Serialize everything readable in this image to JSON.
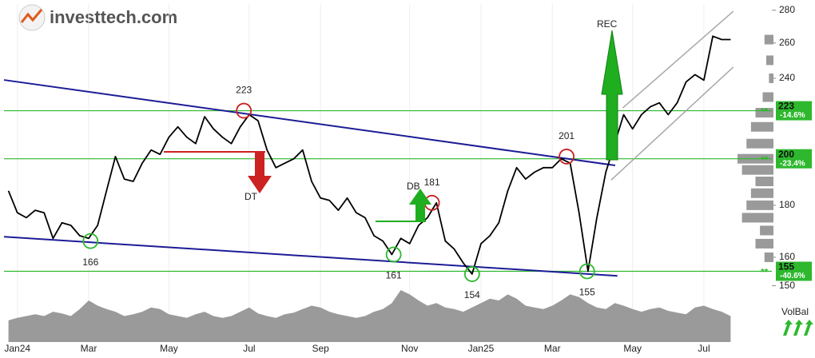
{
  "header": {
    "logo": "investtech.com"
  },
  "chart_data": {
    "type": "line",
    "log_scale": true,
    "color": "#000000",
    "ylim": [
      148,
      284
    ],
    "yticks": [
      150,
      160,
      180,
      240,
      260,
      280
    ],
    "categories": [
      null,
      "Jan24",
      null,
      null,
      null,
      null,
      null,
      null,
      null,
      "Mar",
      null,
      null,
      null,
      null,
      null,
      null,
      null,
      null,
      "May",
      null,
      null,
      null,
      null,
      null,
      null,
      null,
      null,
      "Jul",
      null,
      null,
      null,
      null,
      null,
      null,
      null,
      "Sep",
      null,
      null,
      null,
      null,
      null,
      null,
      null,
      null,
      null,
      "Nov",
      null,
      null,
      null,
      null,
      null,
      null,
      null,
      "Jan25",
      null,
      null,
      null,
      null,
      null,
      null,
      null,
      "Mar",
      null,
      null,
      null,
      null,
      null,
      null,
      null,
      null,
      "May",
      null,
      null,
      null,
      null,
      null,
      null,
      null,
      "Jul",
      null,
      null,
      null
    ],
    "values": [
      186,
      177,
      175,
      178,
      177,
      167,
      173,
      172,
      168,
      167,
      172,
      186,
      201,
      191,
      190,
      198,
      204,
      202,
      210,
      215,
      210,
      207,
      220,
      214,
      210,
      207,
      215,
      221,
      218,
      204,
      196,
      198,
      200,
      204,
      190,
      183,
      182,
      178,
      183,
      177,
      175,
      168,
      166,
      161,
      167,
      165,
      172,
      175,
      181,
      166,
      163,
      158,
      154,
      165,
      168,
      173,
      186,
      196,
      191,
      194,
      196,
      196,
      200,
      198,
      177,
      155,
      175,
      194,
      207,
      221,
      214,
      221,
      225,
      227,
      221,
      227,
      238,
      242,
      239,
      264,
      262,
      262
    ],
    "volume": {
      "label": "VolBal",
      "color": "#9a9a9a",
      "values": [
        25,
        28,
        30,
        32,
        30,
        35,
        33,
        30,
        38,
        48,
        42,
        38,
        35,
        30,
        32,
        35,
        40,
        38,
        32,
        30,
        28,
        32,
        35,
        30,
        28,
        30,
        35,
        40,
        33,
        30,
        28,
        32,
        34,
        38,
        42,
        40,
        35,
        32,
        30,
        28,
        30,
        35,
        38,
        45,
        60,
        55,
        48,
        42,
        45,
        40,
        38,
        35,
        40,
        45,
        50,
        48,
        55,
        50,
        42,
        40,
        38,
        42,
        48,
        55,
        52,
        45,
        40,
        38,
        45,
        42,
        38,
        35,
        38,
        40,
        36,
        34,
        32,
        40,
        42,
        38,
        35,
        30
      ]
    },
    "volume_profile": {
      "color": "#9a9a9a",
      "levels": [
        262,
        250,
        240,
        230,
        222,
        215,
        207,
        200,
        195,
        190,
        185,
        180,
        175,
        170,
        165,
        160
      ],
      "values": [
        10,
        8,
        5,
        12,
        20,
        25,
        30,
        40,
        35,
        20,
        25,
        30,
        35,
        15,
        20,
        10
      ]
    },
    "levels": [
      {
        "value": 223,
        "label": "-14.6%",
        "flag": "**"
      },
      {
        "value": 200,
        "label": "-23.4%",
        "flag": "**"
      },
      {
        "value": 155,
        "label": "-40.6%",
        "flag": "**"
      }
    ],
    "level_color": "#2db82d",
    "trendlines": [
      {
        "color": "#1c1c96",
        "points": [
          [
            -0.5,
            239.1
          ],
          [
            68.05,
            197
          ]
        ]
      },
      {
        "color": "#1c1c96",
        "points": [
          [
            -0.5,
            167.6
          ],
          [
            68.3,
            153.4
          ]
        ]
      },
      {
        "color": "#a8a8a8",
        "points": [
          [
            68.9,
            224.4
          ],
          [
            81.3,
            279.4
          ]
        ]
      },
      {
        "color": "#a8a8a8",
        "points": [
          [
            67.6,
            190.6
          ],
          [
            81.3,
            246.2
          ]
        ]
      }
    ],
    "signals": [
      {
        "index": 26.4,
        "value": 223,
        "color": "#cc2222",
        "position": "above"
      },
      {
        "index": 62.6,
        "value": 201,
        "color": "#cc2222",
        "position": "above"
      },
      {
        "index": 47.5,
        "value": 181,
        "color": "#cc2222",
        "position": "above"
      },
      {
        "index": 9.2,
        "value": 166,
        "color": "#2db82d",
        "position": "below"
      },
      {
        "index": 43.2,
        "value": 161,
        "color": "#2db82d",
        "position": "below"
      },
      {
        "index": 52,
        "value": 154,
        "color": "#2db82d",
        "position": "below"
      },
      {
        "index": 64.9,
        "value": 155,
        "color": "#2db82d",
        "position": "below"
      }
    ],
    "patterns": [
      {
        "label": "REC"
      },
      {
        "label": "DT"
      },
      {
        "label": "DB"
      }
    ]
  }
}
